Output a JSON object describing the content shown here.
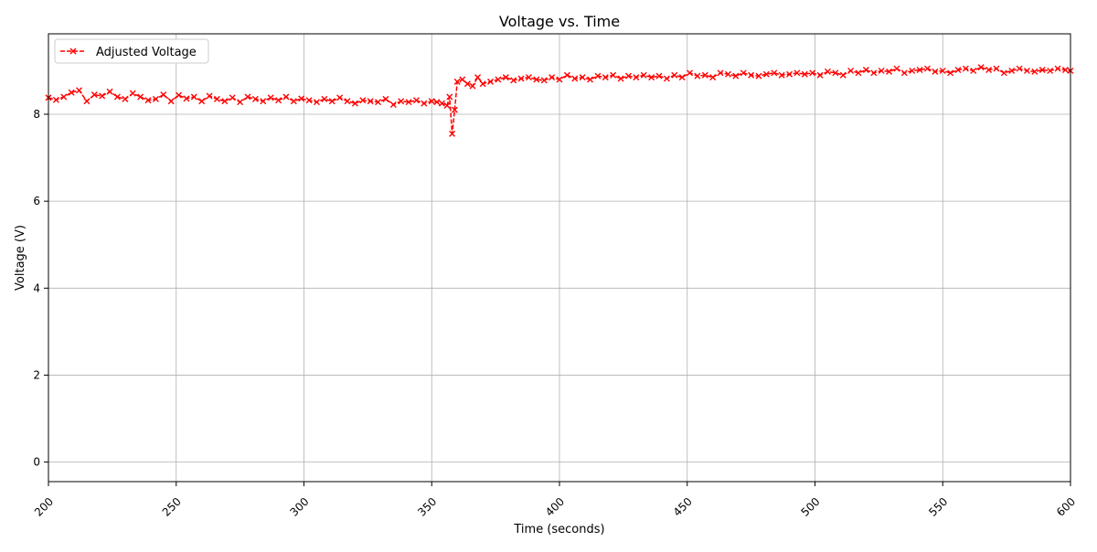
{
  "chart_data": {
    "type": "line",
    "title": "Voltage vs. Time",
    "xlabel": "Time (seconds)",
    "ylabel": "Voltage (V)",
    "xlim": [
      200,
      600
    ],
    "ylim": [
      -0.45,
      9.85
    ],
    "x_ticks": [
      200,
      250,
      300,
      350,
      400,
      450,
      500,
      550,
      600
    ],
    "x_tick_labels": [
      "200",
      "250",
      "300",
      "350",
      "400",
      "450",
      "500",
      "550",
      "600"
    ],
    "y_ticks": [
      0,
      2,
      4,
      6,
      8
    ],
    "y_tick_labels": [
      "0",
      "2",
      "4",
      "6",
      "8"
    ],
    "grid": true,
    "legend_position": "top-left",
    "series": [
      {
        "name": "Adjusted Voltage",
        "color": "#ff0000",
        "line_style": "dashed",
        "marker": "x",
        "x": [
          200,
          203,
          206,
          209,
          212,
          215,
          218,
          221,
          224,
          227,
          230,
          233,
          236,
          239,
          242,
          245,
          248,
          251,
          254,
          257,
          260,
          263,
          266,
          269,
          272,
          275,
          278,
          281,
          284,
          287,
          290,
          293,
          296,
          299,
          302,
          305,
          308,
          311,
          314,
          317,
          320,
          323,
          326,
          329,
          332,
          335,
          338,
          341,
          344,
          347,
          350,
          352,
          354,
          356,
          357,
          358,
          359,
          360,
          362,
          364,
          366,
          368,
          370,
          373,
          376,
          379,
          382,
          385,
          388,
          391,
          394,
          397,
          400,
          403,
          406,
          409,
          412,
          415,
          418,
          421,
          424,
          427,
          430,
          433,
          436,
          439,
          442,
          445,
          448,
          451,
          454,
          457,
          460,
          463,
          466,
          469,
          472,
          475,
          478,
          481,
          484,
          487,
          490,
          493,
          496,
          499,
          502,
          505,
          508,
          511,
          514,
          517,
          520,
          523,
          526,
          529,
          532,
          535,
          538,
          541,
          544,
          547,
          550,
          553,
          556,
          559,
          562,
          565,
          568,
          571,
          574,
          577,
          580,
          583,
          586,
          589,
          592,
          595,
          598,
          600
        ],
        "y": [
          8.38,
          8.33,
          8.4,
          8.5,
          8.55,
          8.3,
          8.45,
          8.42,
          8.52,
          8.4,
          8.35,
          8.48,
          8.4,
          8.32,
          8.35,
          8.45,
          8.3,
          8.44,
          8.36,
          8.4,
          8.3,
          8.42,
          8.35,
          8.3,
          8.38,
          8.28,
          8.4,
          8.35,
          8.3,
          8.38,
          8.32,
          8.4,
          8.3,
          8.36,
          8.32,
          8.28,
          8.35,
          8.3,
          8.38,
          8.3,
          8.25,
          8.32,
          8.3,
          8.28,
          8.35,
          8.22,
          8.3,
          8.28,
          8.32,
          8.25,
          8.3,
          8.28,
          8.25,
          8.2,
          8.4,
          7.55,
          8.1,
          8.75,
          8.8,
          8.7,
          8.65,
          8.85,
          8.7,
          8.75,
          8.8,
          8.85,
          8.78,
          8.82,
          8.85,
          8.8,
          8.78,
          8.85,
          8.8,
          8.9,
          8.82,
          8.85,
          8.8,
          8.88,
          8.85,
          8.9,
          8.82,
          8.88,
          8.85,
          8.9,
          8.85,
          8.88,
          8.82,
          8.9,
          8.85,
          8.95,
          8.88,
          8.9,
          8.85,
          8.95,
          8.92,
          8.88,
          8.95,
          8.9,
          8.88,
          8.92,
          8.95,
          8.9,
          8.92,
          8.95,
          8.92,
          8.95,
          8.9,
          8.98,
          8.95,
          8.9,
          9.0,
          8.95,
          9.02,
          8.95,
          9.0,
          8.98,
          9.05,
          8.95,
          9.0,
          9.02,
          9.05,
          8.98,
          9.0,
          8.95,
          9.02,
          9.05,
          9.0,
          9.08,
          9.02,
          9.05,
          8.95,
          9.0,
          9.05,
          9.0,
          8.98,
          9.02,
          9.0,
          9.05,
          9.02,
          9.0
        ]
      }
    ]
  }
}
